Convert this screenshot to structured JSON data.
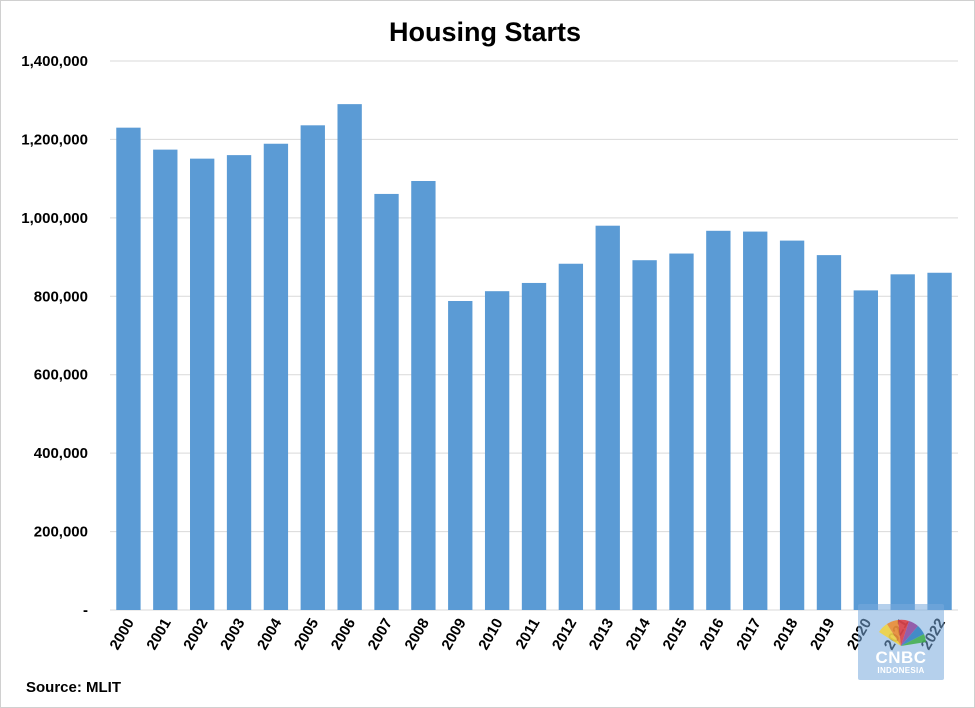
{
  "chart_data": {
    "type": "bar",
    "title": "Housing Starts",
    "categories": [
      "2000",
      "2001",
      "2002",
      "2003",
      "2004",
      "2005",
      "2006",
      "2007",
      "2008",
      "2009",
      "2010",
      "2011",
      "2012",
      "2013",
      "2014",
      "2015",
      "2016",
      "2017",
      "2018",
      "2019",
      "2020",
      "2021",
      "2022"
    ],
    "values": [
      1230000,
      1174000,
      1151000,
      1160000,
      1189000,
      1236000,
      1290000,
      1061000,
      1094000,
      788000,
      813000,
      834000,
      883000,
      980000,
      892000,
      909000,
      967000,
      965000,
      942000,
      905000,
      815000,
      856000,
      860000
    ],
    "y_ticks": [
      "-",
      "200,000",
      "400,000",
      "600,000",
      "800,000",
      "1,000,000",
      "1,200,000",
      "1,400,000"
    ],
    "ylim": [
      0,
      1400000
    ],
    "xlabel": "",
    "ylabel": "",
    "grid": true,
    "legend": "none",
    "bar_color": "#5b9bd5",
    "grid_color": "#d9d9d9"
  },
  "source": "Source: MLIT",
  "watermark": {
    "brand": "CNBC",
    "sub": "INDONESIA",
    "icon": "peacock-logo-icon"
  }
}
